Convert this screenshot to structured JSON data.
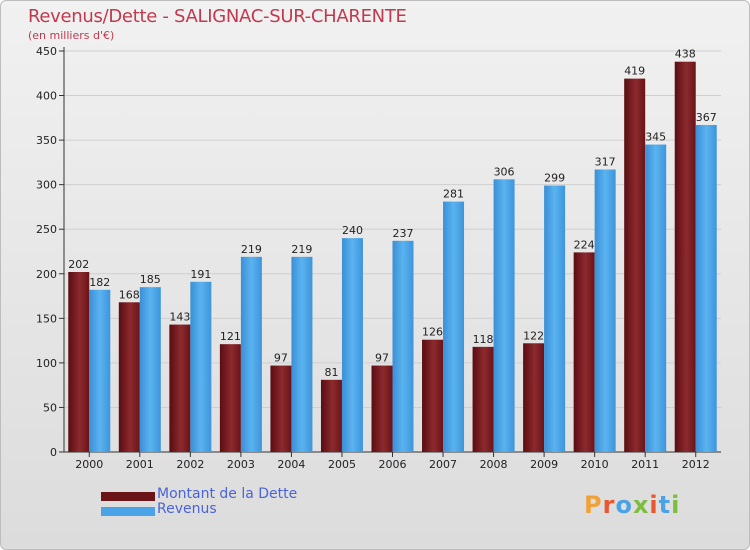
{
  "header": {
    "title": "Revenus/Dette - SALIGNAC-SUR-CHARENTE",
    "subtitle": "(en milliers d'€)"
  },
  "legend": {
    "debt_label": "Montant de la Dette",
    "revenue_label": "Revenus"
  },
  "logo": {
    "text": "Proxiti"
  },
  "colors": {
    "debt": "#7a1a1f",
    "revenue": "#4aa3e6",
    "title": "#c0394e",
    "legend_text": "#4a63d8"
  },
  "chart_data": {
    "type": "bar",
    "title": "Revenus/Dette - SALIGNAC-SUR-CHARENTE",
    "ylabel": "(en milliers d'€)",
    "xlabel": "",
    "categories": [
      "2000",
      "2001",
      "2002",
      "2003",
      "2004",
      "2005",
      "2006",
      "2007",
      "2008",
      "2009",
      "2010",
      "2011",
      "2012"
    ],
    "series": [
      {
        "name": "Montant de la Dette",
        "values": [
          202,
          168,
          143,
          121,
          97,
          81,
          97,
          126,
          118,
          122,
          224,
          419,
          438
        ]
      },
      {
        "name": "Revenus",
        "values": [
          182,
          185,
          191,
          219,
          219,
          240,
          237,
          281,
          306,
          299,
          317,
          345,
          367
        ]
      }
    ],
    "ylim": [
      0,
      450
    ],
    "yticks": [
      0,
      50,
      100,
      150,
      200,
      250,
      300,
      350,
      400,
      450
    ],
    "grid": true,
    "legend_position": "bottom-left"
  }
}
